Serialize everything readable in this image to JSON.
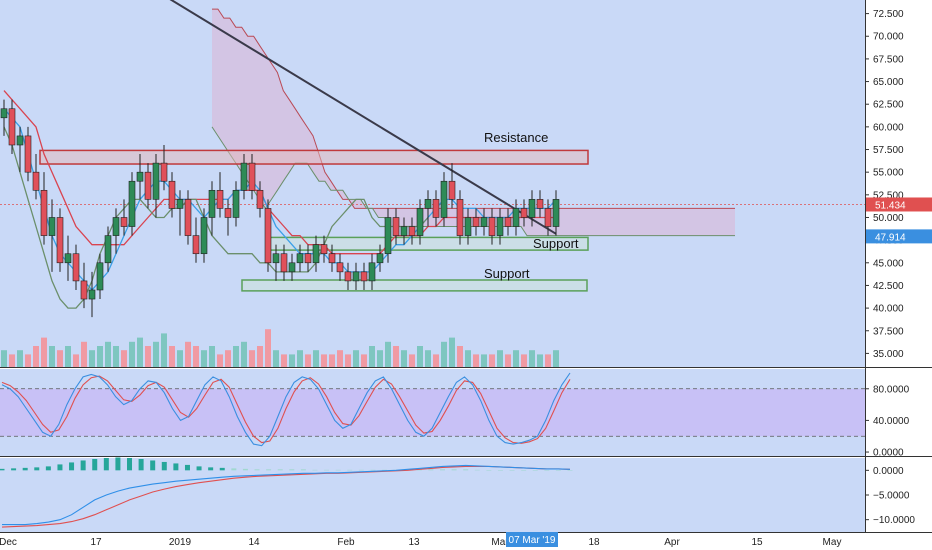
{
  "chart_data": {
    "type": "candlestick",
    "colors": {
      "background": "#c9d9f7",
      "up": "#2e8b57",
      "down": "#e0505a",
      "vol_up": "#7ec6c0",
      "vol_down": "#f09aa3",
      "tenkan": "#3aa0e8",
      "kijun": "#d94450",
      "span_b": "#b94a55",
      "lagging": "#6b8f6b",
      "trend": "#3a3a4a",
      "cloud": "#e6a0c0",
      "resistance": "#c0393b",
      "support": "#5aa05a",
      "stoch_band": "#c8b6f5",
      "stoch_k": "#3a8fe0",
      "stoch_d": "#e05050",
      "macd": "#2f8fe8",
      "signal": "#e05050"
    },
    "price_axis": {
      "ticks": [
        "72.500",
        "70.000",
        "67.500",
        "65.000",
        "62.500",
        "60.000",
        "57.500",
        "55.000",
        "52.500",
        "50.000",
        "47.500",
        "45.000",
        "42.500",
        "40.000",
        "37.500",
        "35.000"
      ],
      "ylim": [
        33.5,
        74.0
      ]
    },
    "last_price": "51.434",
    "lagging_price": "47.914",
    "x_labels": [
      "Dec",
      "17",
      "2019",
      "14",
      "Feb",
      "13",
      "Mar",
      "18",
      "Apr",
      "15",
      "May"
    ],
    "crosshair_date": "07 Mar '19",
    "annotations": {
      "resistance": "Resistance",
      "support_1": "Support",
      "support_2": "Support"
    },
    "zones": {
      "resistance": [
        55.9,
        57.4
      ],
      "support_1": [
        46.4,
        47.8
      ],
      "support_2": [
        41.9,
        43.1
      ]
    },
    "candles": [
      [
        61,
        63,
        59,
        62
      ],
      [
        62,
        63,
        57,
        58
      ],
      [
        58,
        60,
        55,
        59
      ],
      [
        59,
        60,
        54,
        55
      ],
      [
        55,
        57,
        52,
        53
      ],
      [
        53,
        55,
        47,
        48
      ],
      [
        48,
        52,
        44,
        50
      ],
      [
        50,
        51,
        44,
        45
      ],
      [
        45,
        48,
        43,
        46
      ],
      [
        46,
        47,
        42,
        43
      ],
      [
        43,
        45,
        40,
        41
      ],
      [
        41,
        44,
        39,
        42
      ],
      [
        42,
        46,
        41,
        45
      ],
      [
        45,
        49,
        44,
        48
      ],
      [
        48,
        51,
        46,
        50
      ],
      [
        50,
        52,
        48,
        49
      ],
      [
        49,
        55,
        48,
        54
      ],
      [
        54,
        57,
        52,
        55
      ],
      [
        55,
        56,
        51,
        52
      ],
      [
        52,
        57,
        50,
        56
      ],
      [
        56,
        58,
        53,
        54
      ],
      [
        54,
        55,
        50,
        51
      ],
      [
        51,
        53,
        48,
        52
      ],
      [
        52,
        53,
        47,
        48
      ],
      [
        48,
        50,
        45,
        46
      ],
      [
        46,
        51,
        45,
        50
      ],
      [
        50,
        54,
        48,
        53
      ],
      [
        53,
        55,
        50,
        51
      ],
      [
        51,
        52,
        48,
        50
      ],
      [
        50,
        54,
        49,
        53
      ],
      [
        53,
        57,
        52,
        56
      ],
      [
        56,
        57,
        52,
        53
      ],
      [
        53,
        54,
        50,
        51
      ],
      [
        51,
        52,
        44,
        45
      ],
      [
        45,
        47,
        43,
        46
      ],
      [
        46,
        47,
        43,
        44
      ],
      [
        44,
        46,
        43,
        45
      ],
      [
        45,
        47,
        44,
        46
      ],
      [
        46,
        47,
        44,
        45
      ],
      [
        45,
        48,
        44,
        47
      ],
      [
        47,
        48,
        45,
        46
      ],
      [
        46,
        47,
        44,
        45
      ],
      [
        45,
        46,
        43,
        44
      ],
      [
        44,
        45,
        42,
        43
      ],
      [
        43,
        45,
        42,
        44
      ],
      [
        44,
        45,
        42,
        43
      ],
      [
        43,
        46,
        42,
        45
      ],
      [
        45,
        47,
        44,
        46
      ],
      [
        46,
        51,
        45,
        50
      ],
      [
        50,
        51,
        47,
        48
      ],
      [
        48,
        50,
        47,
        49
      ],
      [
        49,
        50,
        47,
        48
      ],
      [
        48,
        52,
        47,
        51
      ],
      [
        51,
        53,
        49,
        52
      ],
      [
        52,
        53,
        49,
        50
      ],
      [
        50,
        55,
        49,
        54
      ],
      [
        54,
        56,
        51,
        52
      ],
      [
        52,
        53,
        47,
        48
      ],
      [
        48,
        51,
        47,
        50
      ],
      [
        50,
        51,
        48,
        49
      ],
      [
        49,
        51,
        48,
        50
      ],
      [
        50,
        51,
        47,
        48
      ],
      [
        48,
        51,
        47,
        50
      ],
      [
        50,
        51,
        48,
        49
      ],
      [
        49,
        52,
        48,
        51
      ],
      [
        51,
        52,
        49,
        50
      ],
      [
        50,
        53,
        49,
        52
      ],
      [
        52,
        53,
        50,
        51
      ],
      [
        51,
        52,
        48,
        49
      ],
      [
        49,
        53,
        48,
        52
      ]
    ],
    "volume": [
      [
        4,
        1
      ],
      [
        3,
        0
      ],
      [
        4,
        1
      ],
      [
        3,
        0
      ],
      [
        5,
        0
      ],
      [
        7,
        0
      ],
      [
        5,
        1
      ],
      [
        4,
        0
      ],
      [
        5,
        1
      ],
      [
        3,
        0
      ],
      [
        6,
        0
      ],
      [
        4,
        1
      ],
      [
        5,
        1
      ],
      [
        6,
        1
      ],
      [
        5,
        1
      ],
      [
        4,
        0
      ],
      [
        6,
        1
      ],
      [
        7,
        1
      ],
      [
        5,
        0
      ],
      [
        6,
        1
      ],
      [
        8,
        1
      ],
      [
        5,
        0
      ],
      [
        4,
        1
      ],
      [
        6,
        0
      ],
      [
        5,
        0
      ],
      [
        4,
        1
      ],
      [
        5,
        1
      ],
      [
        3,
        0
      ],
      [
        4,
        0
      ],
      [
        5,
        1
      ],
      [
        6,
        1
      ],
      [
        4,
        0
      ],
      [
        5,
        0
      ],
      [
        9,
        0
      ],
      [
        4,
        1
      ],
      [
        3,
        0
      ],
      [
        3,
        1
      ],
      [
        4,
        1
      ],
      [
        3,
        0
      ],
      [
        4,
        1
      ],
      [
        3,
        0
      ],
      [
        3,
        0
      ],
      [
        4,
        0
      ],
      [
        3,
        0
      ],
      [
        4,
        1
      ],
      [
        3,
        0
      ],
      [
        5,
        1
      ],
      [
        4,
        1
      ],
      [
        6,
        1
      ],
      [
        5,
        0
      ],
      [
        4,
        1
      ],
      [
        3,
        0
      ],
      [
        5,
        1
      ],
      [
        4,
        1
      ],
      [
        3,
        0
      ],
      [
        6,
        1
      ],
      [
        7,
        1
      ],
      [
        5,
        0
      ],
      [
        4,
        1
      ],
      [
        3,
        0
      ],
      [
        3,
        1
      ],
      [
        3,
        0
      ],
      [
        4,
        1
      ],
      [
        3,
        0
      ],
      [
        4,
        1
      ],
      [
        3,
        0
      ],
      [
        4,
        1
      ],
      [
        3,
        1
      ],
      [
        3,
        0
      ],
      [
        4,
        1
      ]
    ],
    "ichimoku": {
      "tenkan": [
        62,
        61,
        60,
        57,
        54,
        51,
        48,
        46,
        45,
        44,
        43,
        42,
        43,
        44,
        46,
        48,
        50,
        52,
        53,
        54,
        54,
        53,
        52,
        52,
        51,
        50,
        51,
        52,
        52,
        53,
        53,
        54,
        53,
        51,
        49,
        48,
        47,
        46,
        46,
        46,
        46,
        45,
        45,
        44,
        44,
        44,
        44,
        45,
        46,
        47,
        47,
        48,
        49,
        50,
        51,
        52,
        52,
        51,
        51,
        51,
        50,
        50,
        50,
        50,
        51,
        51,
        51,
        51,
        51,
        52
      ],
      "kijun": [
        64,
        63,
        62,
        61,
        60,
        57,
        55,
        53,
        51,
        49,
        48,
        47,
        47,
        47,
        47,
        47,
        48,
        49,
        50,
        51,
        52,
        52,
        52,
        52,
        52,
        52,
        52,
        52,
        52,
        53,
        53,
        53,
        53,
        51,
        50,
        49,
        48,
        48,
        47,
        47,
        47,
        46,
        46,
        46,
        46,
        46,
        46,
        46,
        47,
        48,
        48,
        48,
        48,
        49,
        49,
        50,
        50,
        50,
        50,
        50,
        50,
        50,
        50,
        50,
        50,
        50,
        50,
        50,
        50,
        50
      ],
      "span_a": [
        60,
        59,
        58,
        57,
        56,
        55,
        54,
        53,
        52,
        51,
        52,
        53,
        54,
        55,
        56,
        56,
        56,
        55,
        54,
        54,
        53,
        53,
        53,
        52,
        52,
        52,
        51,
        51,
        50,
        50,
        49,
        49,
        49,
        49,
        49,
        49,
        49,
        49,
        49,
        49,
        49,
        49,
        49,
        49,
        49,
        49,
        49,
        49,
        49,
        49,
        49,
        49,
        49,
        48,
        48,
        48,
        48,
        48,
        48,
        48,
        48,
        48,
        48,
        48,
        48,
        48,
        48,
        48,
        48,
        48,
        48,
        48,
        48,
        48,
        48,
        48,
        48,
        48,
        48,
        48,
        48,
        48,
        48,
        48,
        48,
        48,
        48,
        48,
        48
      ],
      "span_b": [
        73,
        73,
        72,
        72,
        71,
        71,
        70,
        70,
        69,
        68,
        67,
        66,
        64,
        63,
        62,
        61,
        60,
        59,
        57,
        55,
        54,
        53,
        52,
        52,
        51,
        51,
        51,
        51,
        51,
        51,
        51,
        51,
        51,
        51,
        51,
        51,
        51,
        51,
        51,
        51,
        51,
        51,
        51,
        51,
        51,
        51,
        51,
        51,
        51,
        51,
        51,
        51,
        51,
        51,
        51,
        51,
        51,
        51,
        51,
        51,
        51,
        51,
        51,
        51,
        51,
        51,
        51,
        51,
        51,
        51,
        51,
        51,
        51,
        51,
        51,
        51,
        51,
        51,
        51,
        51,
        51,
        51,
        51,
        51,
        51,
        51,
        51,
        51,
        51
      ],
      "lagging": [
        60,
        58,
        55,
        52,
        49,
        46,
        43,
        41,
        40,
        40,
        41,
        43,
        46,
        48,
        50,
        51,
        52,
        52,
        51,
        50,
        50,
        51,
        51,
        52,
        52,
        50,
        48,
        47,
        46,
        46,
        46,
        46,
        45,
        45,
        44,
        44,
        44,
        44,
        44,
        45,
        47,
        49,
        50,
        51,
        52,
        52,
        50,
        49,
        49,
        49,
        49,
        49,
        49,
        50
      ],
      "trend": [
        [
          20,
          74.5
        ],
        [
          69,
          48.2
        ]
      ]
    },
    "stochastic": {
      "ticks": [
        "80.0000",
        "40.0000",
        "0.0000"
      ],
      "ylim": [
        -5,
        105
      ],
      "band": [
        20,
        80
      ],
      "k": [
        85,
        80,
        70,
        55,
        40,
        25,
        20,
        35,
        60,
        80,
        95,
        98,
        95,
        85,
        70,
        60,
        65,
        80,
        90,
        88,
        75,
        55,
        40,
        45,
        65,
        85,
        95,
        90,
        70,
        45,
        25,
        10,
        8,
        20,
        45,
        70,
        88,
        95,
        92,
        80,
        60,
        40,
        30,
        35,
        55,
        75,
        90,
        95,
        80,
        60,
        40,
        25,
        20,
        30,
        50,
        70,
        88,
        95,
        85,
        65,
        40,
        20,
        12,
        10,
        12,
        15,
        20,
        40,
        65,
        85,
        100
      ],
      "d": [
        88,
        84,
        76,
        65,
        50,
        35,
        25,
        28,
        45,
        68,
        85,
        94,
        96,
        90,
        78,
        66,
        64,
        72,
        84,
        88,
        82,
        66,
        50,
        44,
        55,
        72,
        88,
        92,
        82,
        60,
        38,
        20,
        12,
        14,
        30,
        55,
        76,
        90,
        94,
        86,
        70,
        50,
        36,
        34,
        46,
        64,
        82,
        92,
        86,
        70,
        52,
        34,
        24,
        26,
        40,
        58,
        78,
        90,
        88,
        74,
        52,
        30,
        18,
        12,
        11,
        13,
        17,
        30,
        52,
        75,
        92
      ]
    },
    "macd": {
      "ticks": [
        "0.0000",
        "−5.0000",
        "−10.0000"
      ],
      "ylim": [
        -12.5,
        2.5
      ],
      "macd": [
        -11,
        -11,
        -11,
        -10.8,
        -10.5,
        -10,
        -9,
        -7.5,
        -6,
        -5,
        -4.2,
        -3.6,
        -3.2,
        -2.8,
        -2.5,
        -2.2,
        -2,
        -1.8,
        -1.6,
        -1.4,
        -1.2,
        -1.1,
        -1,
        -0.9,
        -0.8,
        -0.7,
        -0.6,
        -0.6,
        -0.5,
        -0.5,
        -0.4,
        -0.3,
        -0.2,
        -0.1,
        0,
        0.2,
        0.4,
        0.6,
        0.8,
        0.9,
        1.0,
        0.9,
        0.8,
        0.7,
        0.6,
        0.5,
        0.4,
        0.3,
        0.3,
        0.2
      ],
      "signal": [
        -11.5,
        -11.4,
        -11.3,
        -11.2,
        -11,
        -10.8,
        -10.4,
        -9.8,
        -9,
        -8,
        -7,
        -6,
        -5.2,
        -4.4,
        -3.8,
        -3.3,
        -2.9,
        -2.5,
        -2.2,
        -1.9,
        -1.6,
        -1.4,
        -1.2,
        -1.1,
        -1,
        -0.9,
        -0.8,
        -0.7,
        -0.6,
        -0.6,
        -0.5,
        -0.4,
        -0.3,
        -0.2,
        -0.1,
        0,
        0.2,
        0.4,
        0.6,
        0.7,
        0.8,
        0.8,
        0.8,
        0.7,
        0.6,
        0.5,
        0.4,
        0.3,
        0.3,
        0.2
      ],
      "hist": [
        0.3,
        0.4,
        0.5,
        0.6,
        0.8,
        1.2,
        1.6,
        2.0,
        2.3,
        2.5,
        2.6,
        2.5,
        2.3,
        2.0,
        1.7,
        1.4,
        1.1,
        0.8,
        0.6,
        0.5,
        0.4,
        0.3,
        0.2,
        0.2,
        0.2,
        0.2,
        0.2,
        0.1,
        0.1,
        0.1,
        0.1,
        0.1,
        0.1,
        0.1,
        0.1,
        0.2,
        0.2,
        0.2,
        0.2,
        0.2,
        0.2,
        0.1,
        0.0,
        0.0,
        0.0,
        0.0,
        0.0,
        0.0,
        0.0,
        0.0
      ]
    }
  }
}
